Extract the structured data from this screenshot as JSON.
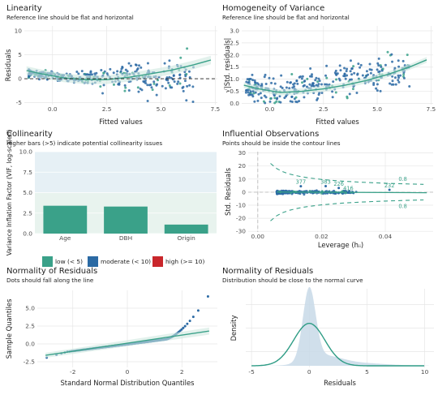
{
  "chart_data": [
    {
      "id": "linearity",
      "type": "scatter",
      "title": "Linearity",
      "subtitle": "Reference line should be flat and horizontal",
      "xlabel": "Fitted values",
      "ylabel": "Residuals",
      "xlim": [
        -1.3,
        7.6
      ],
      "ylim": [
        -5.4,
        11
      ],
      "xticks": [
        0.0,
        2.5,
        5.0,
        7.5
      ],
      "yticks": [
        -5,
        0,
        5,
        10
      ],
      "reference_line_y": 0,
      "point_colors": [
        "#2b6aa4",
        "#3aa189"
      ],
      "smooth": [
        [
          -1.2,
          1.7
        ],
        [
          -0.5,
          1.0
        ],
        [
          0.5,
          0.2
        ],
        [
          1.5,
          -0.2
        ],
        [
          2.5,
          -0.2
        ],
        [
          3.5,
          0.3
        ],
        [
          4.5,
          1.0
        ],
        [
          5.5,
          1.8
        ],
        [
          6.5,
          2.9
        ],
        [
          7.3,
          3.9
        ]
      ]
    },
    {
      "id": "homogeneity",
      "type": "scatter",
      "title": "Homogeneity of Variance",
      "subtitle": "Reference line should be flat and horizontal",
      "xlabel": "Fitted values",
      "ylabel": "√|Std. residuals|",
      "xlim": [
        -1.3,
        7.6
      ],
      "ylim": [
        -0.05,
        3.2
      ],
      "xticks": [
        0.0,
        2.5,
        5.0,
        7.5
      ],
      "yticks": [
        0.0,
        0.5,
        1.0,
        1.5,
        2.0,
        2.5,
        3.0
      ],
      "point_colors": [
        "#2b6aa4",
        "#3aa189"
      ],
      "smooth": [
        [
          -1.2,
          0.75
        ],
        [
          -0.5,
          0.6
        ],
        [
          0.5,
          0.45
        ],
        [
          1.5,
          0.5
        ],
        [
          2.5,
          0.6
        ],
        [
          3.5,
          0.75
        ],
        [
          4.5,
          0.95
        ],
        [
          5.5,
          1.2
        ],
        [
          6.5,
          1.5
        ],
        [
          7.3,
          1.8
        ]
      ]
    },
    {
      "id": "collinearity",
      "type": "bar",
      "title": "Collinearity",
      "subtitle": "Higher bars (>5) indicate potential collinearity issues",
      "ylabel": "Variance Inflation Factor (VIF, log-scaled)",
      "categories": [
        "Age",
        "DBH",
        "Origin"
      ],
      "values": [
        3.4,
        3.3,
        1.1
      ],
      "bar_colors": [
        "#3aa189",
        "#3aa189",
        "#3aa189"
      ],
      "ylim": [
        0,
        10
      ],
      "yticks": [
        0.0,
        2.5,
        5.0,
        7.5,
        10.0
      ],
      "band_low": "#e8f3ee",
      "band_moderate": "#e6f0f5",
      "legend": [
        {
          "label": "low (< 5)",
          "color": "#3aa189"
        },
        {
          "label": "moderate (< 10)",
          "color": "#2b6aa4"
        },
        {
          "label": "high (>= 10)",
          "color": "#c9262b"
        }
      ]
    },
    {
      "id": "influential",
      "type": "scatter",
      "title": "Influential Observations",
      "subtitle": "Points should be inside the contour lines",
      "xlabel": "Leverage (hᵢᵢ)",
      "ylabel": "Std. Residuals",
      "xlim": [
        -0.003,
        0.055
      ],
      "ylim": [
        -30.5,
        31
      ],
      "xticks": [
        0.0,
        0.02,
        0.04
      ],
      "xtick_labels": [
        "0.00",
        "0.02",
        "0.04"
      ],
      "yticks": [
        -30,
        -20,
        -10,
        0,
        10,
        20,
        30
      ],
      "contour_label": "0.8",
      "labeled_points": [
        {
          "label": "377",
          "x": 0.0135,
          "y": 4.5
        },
        {
          "label": "383",
          "x": 0.0213,
          "y": 4.6
        },
        {
          "label": "226",
          "x": 0.0254,
          "y": 3.2
        },
        {
          "label": "232",
          "x": 0.0413,
          "y": 1.8
        },
        {
          "label": "416",
          "x": 0.0284,
          "y": -0.4
        }
      ],
      "point_colors": [
        "#2b6aa4",
        "#3aa189"
      ]
    },
    {
      "id": "qq",
      "type": "scatter",
      "title": "Normality of Residuals",
      "subtitle": "Dots should fall along the line",
      "xlabel": "Standard Normal Distribution Quantiles",
      "ylabel": "Sample Quantiles",
      "xlim": [
        -3.3,
        3.3
      ],
      "ylim": [
        -3.3,
        7.5
      ],
      "xticks": [
        -2,
        0,
        2
      ],
      "yticks": [
        -2.5,
        0.0,
        2.5,
        5.0
      ],
      "line": [
        [
          -3.0,
          -1.6
        ],
        [
          3.0,
          1.8
        ]
      ],
      "point_colors": [
        "#2b6aa4",
        "#3aa189"
      ]
    },
    {
      "id": "density",
      "type": "area",
      "title": "Normality of Residuals",
      "subtitle": "Distribution should be close to the normal curve",
      "xlabel": "Residuals",
      "ylabel": "Density",
      "xlim": [
        -5.5,
        10.8
      ],
      "xticks": [
        -5,
        0,
        5,
        10
      ],
      "normal_mean": 0,
      "normal_sd": 1.35,
      "fill": "#c8d9e7",
      "curve_color": "#2e9c85"
    }
  ]
}
